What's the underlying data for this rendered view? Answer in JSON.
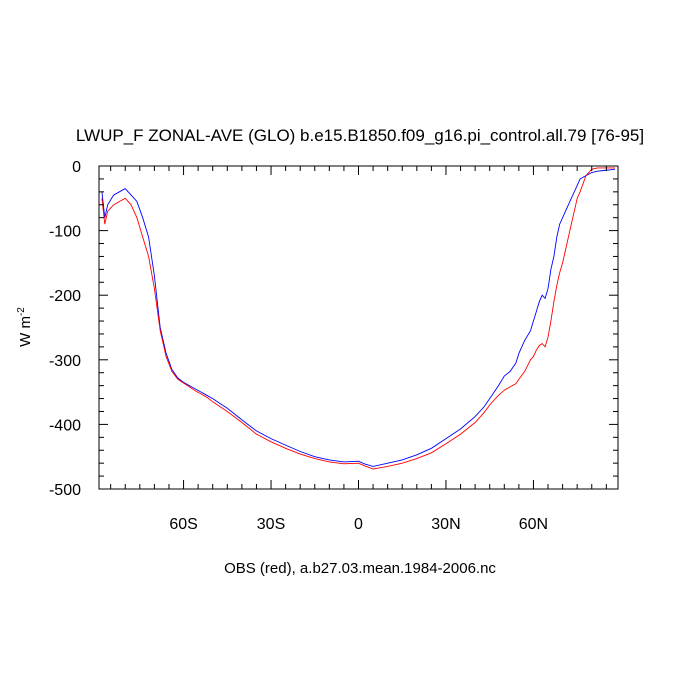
{
  "chart_data": {
    "type": "line",
    "title": "LWUP_F ZONAL-AVE (GLO) b.e15.B1850.f09_g16.pi_control.all.79 [76-95]",
    "subtitle": "OBS (red), a.b27.03.mean.1984-2006.nc",
    "xlabel": "",
    "ylabel_main": "W m",
    "ylabel_sup": "-2",
    "xlim": [
      -89,
      89
    ],
    "ylim": [
      -500,
      0
    ],
    "x_ticks": [
      {
        "value": -60,
        "label": "60S"
      },
      {
        "value": -30,
        "label": "30S"
      },
      {
        "value": 0,
        "label": "0"
      },
      {
        "value": 30,
        "label": "30N"
      },
      {
        "value": 60,
        "label": "60N"
      }
    ],
    "y_ticks": [
      {
        "value": 0,
        "label": "0"
      },
      {
        "value": -100,
        "label": "-100"
      },
      {
        "value": -200,
        "label": "-200"
      },
      {
        "value": -300,
        "label": "-300"
      },
      {
        "value": -400,
        "label": "-400"
      },
      {
        "value": -500,
        "label": "-500"
      }
    ],
    "grid": false,
    "legend": "none",
    "series": [
      {
        "color": "#0000ff",
        "x": [
          -88,
          -87,
          -86,
          -84,
          -82,
          -80,
          -78,
          -76,
          -74,
          -72,
          -70,
          -68,
          -66,
          -64,
          -62,
          -60,
          -58,
          -56,
          -54,
          -52,
          -50,
          -45,
          -40,
          -35,
          -30,
          -25,
          -20,
          -15,
          -10,
          -5,
          0,
          2,
          5,
          10,
          15,
          20,
          25,
          30,
          35,
          40,
          43,
          45,
          48,
          50,
          52,
          54,
          55,
          57,
          59,
          60,
          61,
          62,
          63,
          64,
          65,
          66,
          67,
          68,
          69,
          70,
          71,
          72,
          73,
          74,
          75,
          76,
          78,
          80,
          82,
          84,
          86,
          88
        ],
        "y": [
          -40,
          -80,
          -60,
          -45,
          -40,
          -35,
          -45,
          -55,
          -80,
          -110,
          -170,
          -250,
          -290,
          -315,
          -328,
          -335,
          -340,
          -345,
          -350,
          -355,
          -360,
          -375,
          -393,
          -410,
          -422,
          -432,
          -442,
          -450,
          -455,
          -458,
          -457,
          -461,
          -465,
          -460,
          -455,
          -447,
          -437,
          -422,
          -407,
          -388,
          -373,
          -360,
          -340,
          -325,
          -318,
          -305,
          -290,
          -270,
          -255,
          -240,
          -225,
          -210,
          -200,
          -205,
          -190,
          -160,
          -140,
          -110,
          -90,
          -80,
          -70,
          -60,
          -50,
          -40,
          -30,
          -20,
          -15,
          -10,
          -8,
          -7,
          -6,
          -5
        ]
      },
      {
        "color": "#ff0000",
        "x": [
          -88,
          -87,
          -86,
          -84,
          -82,
          -80,
          -78,
          -76,
          -74,
          -72,
          -70,
          -68,
          -66,
          -64,
          -62,
          -60,
          -58,
          -56,
          -54,
          -52,
          -50,
          -45,
          -40,
          -35,
          -30,
          -25,
          -20,
          -15,
          -10,
          -5,
          0,
          2,
          5,
          10,
          15,
          20,
          25,
          30,
          35,
          40,
          43,
          45,
          48,
          50,
          52,
          54,
          55,
          57,
          59,
          60,
          61,
          62,
          63,
          64,
          65,
          66,
          67,
          68,
          69,
          70,
          71,
          72,
          73,
          74,
          75,
          76,
          78,
          80,
          82,
          84,
          86,
          88
        ],
        "y": [
          -50,
          -90,
          -70,
          -60,
          -55,
          -50,
          -60,
          -80,
          -110,
          -140,
          -190,
          -255,
          -295,
          -318,
          -330,
          -336,
          -342,
          -348,
          -353,
          -358,
          -365,
          -380,
          -397,
          -415,
          -427,
          -437,
          -446,
          -453,
          -458,
          -461,
          -460,
          -464,
          -469,
          -465,
          -460,
          -453,
          -444,
          -430,
          -415,
          -397,
          -382,
          -370,
          -355,
          -347,
          -342,
          -337,
          -330,
          -318,
          -300,
          -295,
          -285,
          -278,
          -275,
          -280,
          -265,
          -240,
          -210,
          -185,
          -165,
          -150,
          -130,
          -110,
          -90,
          -70,
          -50,
          -40,
          -15,
          -5,
          -3,
          -3,
          -3,
          -3
        ]
      }
    ]
  }
}
